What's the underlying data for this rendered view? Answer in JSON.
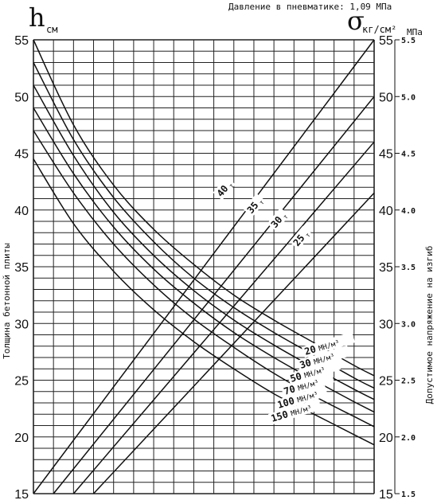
{
  "header": {
    "pressure_text": "Давление в пневматике: 1,09 МПа",
    "h_symbol": "h",
    "h_unit": "см",
    "sigma_symbol": "σ",
    "sigma_unit": "кг/см²",
    "mpa_unit": "МПа"
  },
  "chart_data": {
    "type": "line",
    "title": "",
    "ylabel_left": "Толщина бетонной плиты",
    "ylabel_right": "Допустимое напряжение на изгиб",
    "ylim": [
      15,
      55
    ],
    "left_ticks": [
      "15",
      "20",
      "25",
      "30",
      "35",
      "40",
      "45",
      "50",
      "55"
    ],
    "right_ticks_sigma": [
      "15",
      "20",
      "25",
      "30",
      "35",
      "40",
      "45",
      "50",
      "55"
    ],
    "right_ticks_mpa": [
      "1.5",
      "2.0",
      "2.5",
      "3.0",
      "3.5",
      "4.0",
      "4.5",
      "5.0",
      "5.5"
    ],
    "grid": true,
    "x_grid_columns": 17,
    "x_grid_range": [
      0,
      17
    ],
    "load_series": [
      {
        "name": "40",
        "unit": "т",
        "x": [
          0,
          17
        ],
        "y": [
          15,
          55
        ]
      },
      {
        "name": "35",
        "unit": "т",
        "x": [
          1,
          17
        ],
        "y": [
          15,
          50
        ]
      },
      {
        "name": "30",
        "unit": "т",
        "x": [
          2,
          17
        ],
        "y": [
          15,
          46
        ]
      },
      {
        "name": "25",
        "unit": "т",
        "x": [
          3,
          17
        ],
        "y": [
          15,
          41.5
        ]
      }
    ],
    "modulus_series": [
      {
        "name": "20",
        "unit": "МН/м³",
        "x": [
          0,
          2,
          4,
          6,
          8,
          10,
          12,
          14,
          16,
          17
        ],
        "y": [
          55,
          47.5,
          42.2,
          38.3,
          35.2,
          32.5,
          30.3,
          28.3,
          26.3,
          25.4
        ]
      },
      {
        "name": "30",
        "unit": "МН/м³",
        "x": [
          0,
          2,
          4,
          6,
          8,
          10,
          12,
          14,
          16,
          17
        ],
        "y": [
          53,
          46.2,
          41.1,
          37.2,
          34,
          31.4,
          29.2,
          27.2,
          25.2,
          24.3
        ]
      },
      {
        "name": "50",
        "unit": "МН/м³",
        "x": [
          0,
          2,
          4,
          6,
          8,
          10,
          12,
          14,
          16,
          17
        ],
        "y": [
          51,
          44.8,
          39.8,
          36,
          32.9,
          30.3,
          28.1,
          26.1,
          24.2,
          23.3
        ]
      },
      {
        "name": "70",
        "unit": "МН/м³",
        "x": [
          0,
          2,
          4,
          6,
          8,
          10,
          12,
          14,
          16,
          17
        ],
        "y": [
          49,
          43.2,
          38.5,
          34.8,
          31.8,
          29.2,
          27,
          25,
          23.1,
          22.2
        ]
      },
      {
        "name": "100",
        "unit": "МН/м³",
        "x": [
          0,
          2,
          4,
          6,
          8,
          10,
          12,
          14,
          16,
          17
        ],
        "y": [
          47,
          41.5,
          37,
          33.4,
          30.4,
          27.9,
          25.6,
          23.6,
          21.8,
          20.9
        ]
      },
      {
        "name": "150",
        "unit": "МН/м³",
        "x": [
          0,
          2,
          4,
          6,
          8,
          10,
          12,
          14,
          16,
          17
        ],
        "y": [
          44.5,
          38.8,
          34.6,
          31.2,
          28.4,
          26,
          23.8,
          22,
          20.2,
          19.3
        ]
      }
    ]
  }
}
